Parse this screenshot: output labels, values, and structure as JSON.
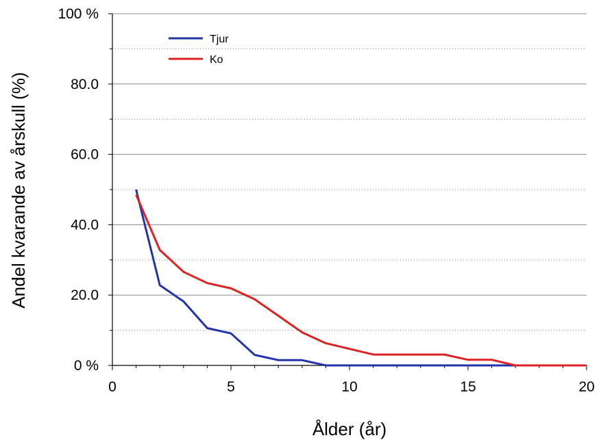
{
  "chart_data": {
    "type": "line",
    "title": "",
    "xlabel": "Ålder (år)",
    "ylabel": "Andel kvarande av årskull (%)",
    "xlim": [
      0,
      20
    ],
    "ylim": [
      0,
      100
    ],
    "x_ticks": [
      0,
      5,
      10,
      15,
      20
    ],
    "x_tick_labels": [
      "0",
      "5",
      "10",
      "15",
      "20"
    ],
    "y_ticks": [
      0,
      20,
      40,
      60,
      80,
      100
    ],
    "y_tick_labels": [
      "0 %",
      "20.0",
      "40.0",
      "60.0",
      "80.0",
      "100 %"
    ],
    "grid": "horizontal major solid, minor dotted",
    "legend_position": "top-left",
    "series": [
      {
        "name": "Tjur",
        "color": "#2233aa",
        "x": [
          1,
          2,
          3,
          4,
          5,
          6,
          7,
          8,
          9,
          10,
          11,
          12,
          13,
          14,
          15,
          16,
          17,
          18,
          19,
          20
        ],
        "values": [
          50.0,
          22.8,
          18.2,
          10.6,
          9.1,
          3.0,
          1.5,
          1.5,
          0,
          0,
          0,
          0,
          0,
          0,
          0,
          0,
          0,
          0,
          0,
          0
        ]
      },
      {
        "name": "Ko",
        "color": "#dd2222",
        "x": [
          1,
          2,
          3,
          4,
          5,
          6,
          7,
          8,
          9,
          10,
          11,
          12,
          13,
          14,
          15,
          16,
          17,
          18,
          19,
          20
        ],
        "values": [
          48.5,
          32.8,
          26.6,
          23.4,
          21.9,
          18.8,
          14.1,
          9.4,
          6.3,
          4.7,
          3.1,
          3.1,
          3.1,
          3.1,
          1.6,
          1.6,
          0,
          0,
          0,
          0
        ]
      }
    ]
  }
}
